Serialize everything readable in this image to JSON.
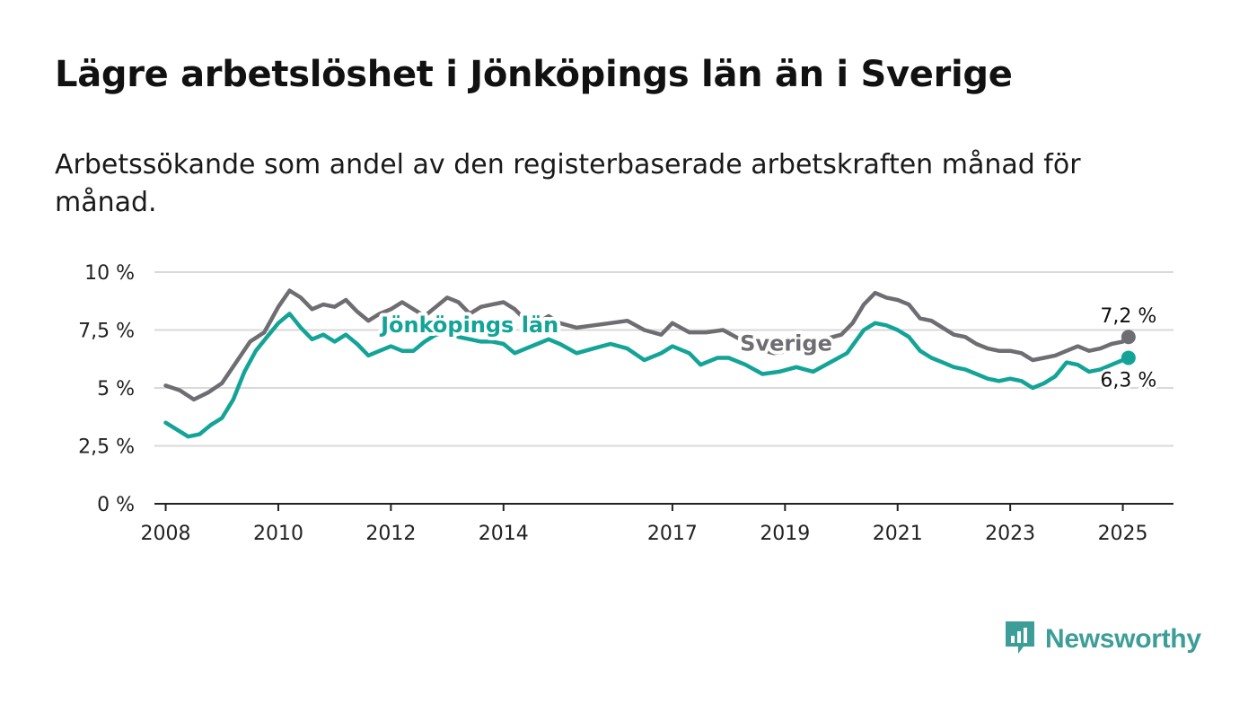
{
  "title": "Lägre arbetslöshet i Jönköpings län än i Sverige",
  "subtitle": "Arbetssökande som andel av den registerbaserade arbetskraften månad för månad.",
  "brand": {
    "name": "Newsworthy",
    "color": "#3d9e97",
    "icon": "bar-chart-logo-icon"
  },
  "colors": {
    "sverige": "#6e6d72",
    "jonkoping": "#14a497",
    "grid": "#d9d9d9",
    "axis": "#222222"
  },
  "chart_data": {
    "type": "line",
    "title": "Lägre arbetslöshet i Jönköpings län än i Sverige",
    "ylim": [
      0,
      10
    ],
    "yticks": [
      0,
      2.5,
      5,
      7.5,
      10
    ],
    "ytick_labels": [
      "0 %",
      "2,5 %",
      "5 %",
      "7,5 %",
      "10 %"
    ],
    "xlim": [
      2007.8,
      2025.9
    ],
    "xticks": [
      2008,
      2010,
      2012,
      2014,
      2017,
      2019,
      2021,
      2023,
      2025
    ],
    "xtick_labels": [
      "2008",
      "2010",
      "2012",
      "2014",
      "2017",
      "2019",
      "2021",
      "2023",
      "2025"
    ],
    "grid": true,
    "series": [
      {
        "name": "Sverige",
        "color": "#6e6d72",
        "end_label": "7,2 %",
        "points": [
          [
            2008.0,
            5.1
          ],
          [
            2008.25,
            4.9
          ],
          [
            2008.5,
            4.5
          ],
          [
            2008.75,
            4.8
          ],
          [
            2009.0,
            5.2
          ],
          [
            2009.25,
            6.1
          ],
          [
            2009.5,
            7.0
          ],
          [
            2009.75,
            7.4
          ],
          [
            2010.0,
            8.5
          ],
          [
            2010.2,
            9.2
          ],
          [
            2010.4,
            8.9
          ],
          [
            2010.6,
            8.4
          ],
          [
            2010.8,
            8.6
          ],
          [
            2011.0,
            8.5
          ],
          [
            2011.2,
            8.8
          ],
          [
            2011.4,
            8.3
          ],
          [
            2011.6,
            7.9
          ],
          [
            2011.8,
            8.2
          ],
          [
            2012.0,
            8.4
          ],
          [
            2012.2,
            8.7
          ],
          [
            2012.4,
            8.4
          ],
          [
            2012.6,
            8.1
          ],
          [
            2012.8,
            8.5
          ],
          [
            2013.0,
            8.9
          ],
          [
            2013.2,
            8.7
          ],
          [
            2013.4,
            8.2
          ],
          [
            2013.6,
            8.5
          ],
          [
            2013.8,
            8.6
          ],
          [
            2014.0,
            8.7
          ],
          [
            2014.2,
            8.4
          ],
          [
            2014.4,
            7.9
          ],
          [
            2014.6,
            7.8
          ],
          [
            2014.8,
            8.1
          ],
          [
            2015.0,
            7.8
          ],
          [
            2015.3,
            7.6
          ],
          [
            2015.6,
            7.7
          ],
          [
            2015.9,
            7.8
          ],
          [
            2016.2,
            7.9
          ],
          [
            2016.5,
            7.5
          ],
          [
            2016.8,
            7.3
          ],
          [
            2017.0,
            7.8
          ],
          [
            2017.3,
            7.4
          ],
          [
            2017.6,
            7.4
          ],
          [
            2017.9,
            7.5
          ],
          [
            2018.2,
            7.1
          ],
          [
            2018.5,
            6.7
          ],
          [
            2018.8,
            6.5
          ],
          [
            2019.1,
            6.6
          ],
          [
            2019.4,
            6.8
          ],
          [
            2019.7,
            7.1
          ],
          [
            2020.0,
            7.3
          ],
          [
            2020.2,
            7.8
          ],
          [
            2020.4,
            8.6
          ],
          [
            2020.6,
            9.1
          ],
          [
            2020.8,
            8.9
          ],
          [
            2021.0,
            8.8
          ],
          [
            2021.2,
            8.6
          ],
          [
            2021.4,
            8.0
          ],
          [
            2021.6,
            7.9
          ],
          [
            2021.8,
            7.6
          ],
          [
            2022.0,
            7.3
          ],
          [
            2022.2,
            7.2
          ],
          [
            2022.4,
            6.9
          ],
          [
            2022.6,
            6.7
          ],
          [
            2022.8,
            6.6
          ],
          [
            2023.0,
            6.6
          ],
          [
            2023.2,
            6.5
          ],
          [
            2023.4,
            6.2
          ],
          [
            2023.6,
            6.3
          ],
          [
            2023.8,
            6.4
          ],
          [
            2024.0,
            6.6
          ],
          [
            2024.2,
            6.8
          ],
          [
            2024.4,
            6.6
          ],
          [
            2024.6,
            6.7
          ],
          [
            2024.8,
            6.9
          ],
          [
            2025.0,
            7.0
          ],
          [
            2025.1,
            7.2
          ]
        ]
      },
      {
        "name": "Jönköpings län",
        "color": "#14a497",
        "end_label": "6,3 %",
        "points": [
          [
            2008.0,
            3.5
          ],
          [
            2008.2,
            3.2
          ],
          [
            2008.4,
            2.9
          ],
          [
            2008.6,
            3.0
          ],
          [
            2008.8,
            3.4
          ],
          [
            2009.0,
            3.7
          ],
          [
            2009.2,
            4.5
          ],
          [
            2009.4,
            5.7
          ],
          [
            2009.6,
            6.6
          ],
          [
            2009.8,
            7.2
          ],
          [
            2010.0,
            7.8
          ],
          [
            2010.2,
            8.2
          ],
          [
            2010.4,
            7.6
          ],
          [
            2010.6,
            7.1
          ],
          [
            2010.8,
            7.3
          ],
          [
            2011.0,
            7.0
          ],
          [
            2011.2,
            7.3
          ],
          [
            2011.4,
            6.9
          ],
          [
            2011.6,
            6.4
          ],
          [
            2011.8,
            6.6
          ],
          [
            2012.0,
            6.8
          ],
          [
            2012.2,
            6.6
          ],
          [
            2012.4,
            6.6
          ],
          [
            2012.6,
            7.0
          ],
          [
            2012.8,
            7.3
          ],
          [
            2013.0,
            7.4
          ],
          [
            2013.2,
            7.2
          ],
          [
            2013.4,
            7.1
          ],
          [
            2013.6,
            7.0
          ],
          [
            2013.8,
            7.0
          ],
          [
            2014.0,
            6.9
          ],
          [
            2014.2,
            6.5
          ],
          [
            2014.4,
            6.7
          ],
          [
            2014.6,
            6.9
          ],
          [
            2014.8,
            7.1
          ],
          [
            2015.0,
            6.9
          ],
          [
            2015.3,
            6.5
          ],
          [
            2015.6,
            6.7
          ],
          [
            2015.9,
            6.9
          ],
          [
            2016.2,
            6.7
          ],
          [
            2016.5,
            6.2
          ],
          [
            2016.8,
            6.5
          ],
          [
            2017.0,
            6.8
          ],
          [
            2017.3,
            6.5
          ],
          [
            2017.5,
            6.0
          ],
          [
            2017.8,
            6.3
          ],
          [
            2018.0,
            6.3
          ],
          [
            2018.3,
            6.0
          ],
          [
            2018.6,
            5.6
          ],
          [
            2018.9,
            5.7
          ],
          [
            2019.2,
            5.9
          ],
          [
            2019.5,
            5.7
          ],
          [
            2019.8,
            6.1
          ],
          [
            2020.1,
            6.5
          ],
          [
            2020.4,
            7.5
          ],
          [
            2020.6,
            7.8
          ],
          [
            2020.8,
            7.7
          ],
          [
            2021.0,
            7.5
          ],
          [
            2021.2,
            7.2
          ],
          [
            2021.4,
            6.6
          ],
          [
            2021.6,
            6.3
          ],
          [
            2021.8,
            6.1
          ],
          [
            2022.0,
            5.9
          ],
          [
            2022.2,
            5.8
          ],
          [
            2022.4,
            5.6
          ],
          [
            2022.6,
            5.4
          ],
          [
            2022.8,
            5.3
          ],
          [
            2023.0,
            5.4
          ],
          [
            2023.2,
            5.3
          ],
          [
            2023.4,
            5.0
          ],
          [
            2023.6,
            5.2
          ],
          [
            2023.8,
            5.5
          ],
          [
            2024.0,
            6.1
          ],
          [
            2024.2,
            6.0
          ],
          [
            2024.4,
            5.7
          ],
          [
            2024.6,
            5.8
          ],
          [
            2024.8,
            6.0
          ],
          [
            2025.0,
            6.2
          ],
          [
            2025.1,
            6.3
          ]
        ]
      }
    ]
  }
}
